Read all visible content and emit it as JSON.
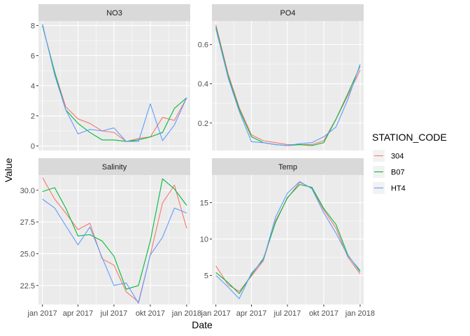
{
  "chart_data": {
    "type": "line",
    "faceted": true,
    "facet_layout": "2x2",
    "xlabel": "Date",
    "ylabel": "Value",
    "x": [
      "2017-01",
      "2017-02",
      "2017-03",
      "2017-04",
      "2017-05",
      "2017-06",
      "2017-07",
      "2017-08",
      "2017-09",
      "2017-10",
      "2017-11",
      "2017-12",
      "2018-01"
    ],
    "x_range": [
      "2016-12-22",
      "2018-01-10"
    ],
    "x_ticks": [
      {
        "x": "2017-01",
        "label": "jan 2017"
      },
      {
        "x": "2017-04",
        "label": "apr 2017"
      },
      {
        "x": "2017-07",
        "label": "jul 2017"
      },
      {
        "x": "2017-10",
        "label": "okt 2017"
      },
      {
        "x": "2018-01",
        "label": "jan 2018"
      }
    ],
    "legend": {
      "title": "STATION_CODE",
      "position": "right",
      "entries": [
        {
          "name": "304",
          "color": "#F8766D"
        },
        {
          "name": "B07",
          "color": "#00BA38"
        },
        {
          "name": "HT4",
          "color": "#619CFF"
        }
      ]
    },
    "colors": {
      "panel_bg": "#EBEBEB",
      "strip_bg": "#D9D9D9",
      "grid": "#FFFFFF"
    },
    "panels": [
      {
        "title": "NO3",
        "ylim": [
          -0.3,
          8.3
        ],
        "yticks": [
          0,
          2,
          4,
          6,
          8
        ],
        "series": [
          {
            "name": "304",
            "values": [
              8.0,
              4.9,
              2.6,
              1.8,
              1.5,
              1.0,
              0.9,
              0.3,
              0.5,
              0.6,
              1.9,
              1.7,
              3.2
            ]
          },
          {
            "name": "B07",
            "values": [
              8.0,
              4.9,
              2.4,
              1.5,
              0.9,
              0.4,
              0.4,
              0.3,
              0.4,
              0.6,
              0.9,
              2.5,
              3.2
            ]
          },
          {
            "name": "HT4",
            "values": [
              8.1,
              4.7,
              2.4,
              0.8,
              1.1,
              1.0,
              1.2,
              0.3,
              0.3,
              2.8,
              0.35,
              1.4,
              3.2
            ]
          }
        ]
      },
      {
        "title": "PO4",
        "ylim": [
          0.06,
          0.72
        ],
        "yticks": [
          0.2,
          0.4,
          0.6
        ],
        "series": [
          {
            "name": "304",
            "values": [
              0.7,
              0.45,
              0.28,
              0.14,
              0.11,
              0.1,
              0.09,
              0.09,
              0.09,
              0.11,
              0.22,
              0.34,
              0.47
            ]
          },
          {
            "name": "B07",
            "values": [
              0.69,
              0.44,
              0.27,
              0.13,
              0.1,
              0.09,
              0.085,
              0.09,
              0.085,
              0.1,
              0.22,
              0.35,
              0.49
            ]
          },
          {
            "name": "HT4",
            "values": [
              0.68,
              0.43,
              0.26,
              0.105,
              0.1,
              0.09,
              0.085,
              0.095,
              0.1,
              0.13,
              0.18,
              0.32,
              0.5
            ]
          }
        ]
      },
      {
        "title": "Salinity",
        "ylim": [
          21.0,
          31.2
        ],
        "yticks": [
          22.5,
          25.0,
          27.5,
          30.0
        ],
        "ytick_labels": [
          "22.5",
          "25.0",
          "27.5",
          "30.0"
        ],
        "series": [
          {
            "name": "304",
            "values": [
              31.0,
              29.3,
              28.2,
              26.9,
              27.4,
              24.6,
              24.1,
              22.0,
              21.2,
              24.9,
              29.0,
              30.4,
              27.0
            ]
          },
          {
            "name": "B07",
            "values": [
              29.9,
              30.2,
              28.6,
              26.4,
              26.5,
              26.0,
              24.8,
              22.2,
              22.5,
              26.0,
              30.9,
              30.1,
              28.8
            ]
          },
          {
            "name": "HT4",
            "values": [
              29.3,
              28.6,
              27.2,
              25.7,
              27.1,
              24.7,
              22.5,
              22.7,
              21.1,
              24.9,
              26.3,
              28.6,
              28.2
            ]
          }
        ]
      },
      {
        "title": "Temp",
        "ylim": [
          1.0,
          18.8
        ],
        "yticks": [
          5,
          10,
          15
        ],
        "series": [
          {
            "name": "304",
            "values": [
              6.3,
              3.7,
              2.8,
              4.9,
              7.0,
              12.5,
              15.6,
              17.8,
              17.0,
              14.0,
              11.5,
              7.5,
              5.2
            ]
          },
          {
            "name": "B07",
            "values": [
              5.4,
              4.0,
              2.5,
              5.1,
              7.3,
              12.3,
              15.7,
              17.5,
              17.1,
              14.2,
              12.0,
              7.8,
              5.5
            ]
          },
          {
            "name": "HT4",
            "values": [
              5.0,
              3.4,
              1.8,
              5.3,
              7.1,
              13.0,
              16.3,
              17.9,
              16.9,
              13.6,
              10.8,
              7.7,
              5.7
            ]
          }
        ]
      }
    ]
  }
}
